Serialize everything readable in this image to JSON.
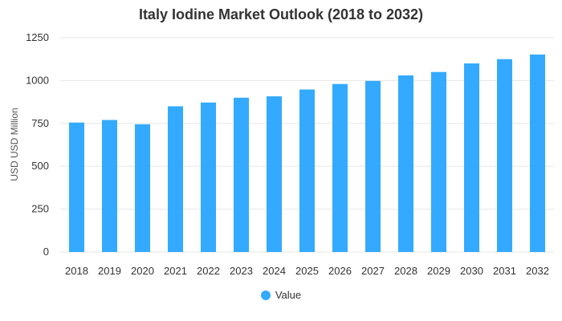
{
  "chart_data": {
    "type": "bar",
    "title": "Italy Iodine Market Outlook (2018 to 2032)",
    "xlabel": "",
    "ylabel": "USD USD Million",
    "categories": [
      "2018",
      "2019",
      "2020",
      "2021",
      "2022",
      "2023",
      "2024",
      "2025",
      "2026",
      "2027",
      "2028",
      "2029",
      "2030",
      "2031",
      "2032"
    ],
    "series": [
      {
        "name": "Value",
        "color": "#33aaff",
        "values": [
          755,
          770,
          745,
          850,
          872,
          900,
          908,
          948,
          980,
          998,
          1030,
          1050,
          1100,
          1125,
          1152
        ]
      }
    ],
    "ylim": [
      0,
      1250
    ],
    "yticks": [
      0,
      250,
      500,
      750,
      1000,
      1250
    ],
    "grid": true,
    "legend_position": "bottom"
  }
}
